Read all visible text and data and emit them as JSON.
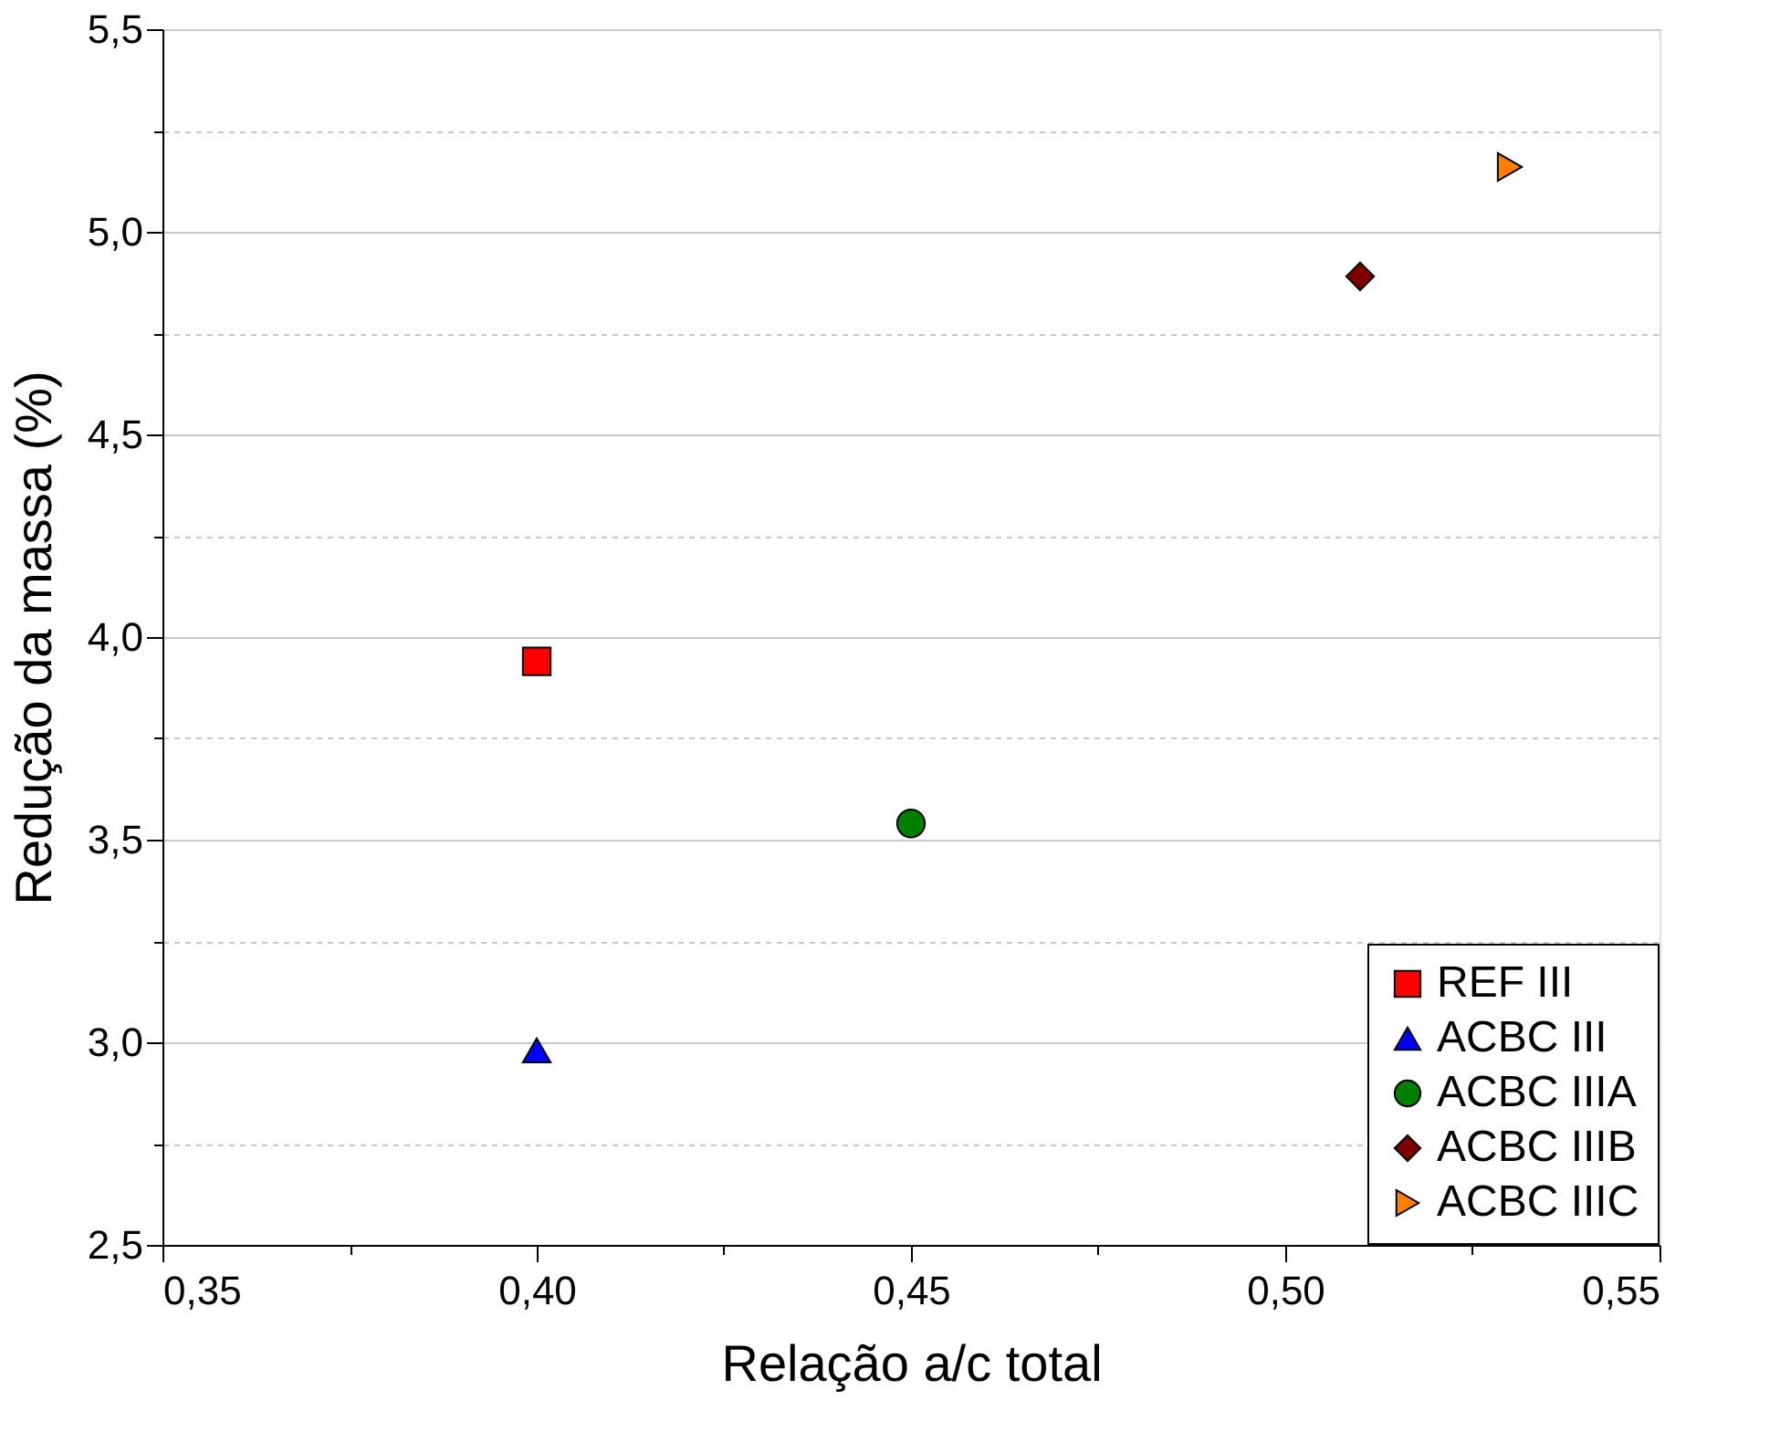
{
  "chart_data": {
    "type": "scatter",
    "xlabel": "Relação a/c total",
    "ylabel": "Redução da massa (%)",
    "xlim": [
      0.35,
      0.55
    ],
    "ylim": [
      2.5,
      5.5
    ],
    "xticks": [
      {
        "value": 0.35,
        "label": "0,35"
      },
      {
        "value": 0.375,
        "label": null
      },
      {
        "value": 0.4,
        "label": "0,40"
      },
      {
        "value": 0.425,
        "label": null
      },
      {
        "value": 0.45,
        "label": "0,45"
      },
      {
        "value": 0.475,
        "label": null
      },
      {
        "value": 0.5,
        "label": "0,50"
      },
      {
        "value": 0.525,
        "label": null
      },
      {
        "value": 0.55,
        "label": "0,55"
      }
    ],
    "yticks": [
      {
        "value": 2.5,
        "label": "2,5"
      },
      {
        "value": 2.75,
        "label": null
      },
      {
        "value": 3.0,
        "label": "3,0"
      },
      {
        "value": 3.25,
        "label": null
      },
      {
        "value": 3.5,
        "label": "3,5"
      },
      {
        "value": 3.75,
        "label": null
      },
      {
        "value": 4.0,
        "label": "4,0"
      },
      {
        "value": 4.25,
        "label": null
      },
      {
        "value": 4.5,
        "label": "4,5"
      },
      {
        "value": 4.75,
        "label": null
      },
      {
        "value": 5.0,
        "label": "5,0"
      },
      {
        "value": 5.25,
        "label": null
      },
      {
        "value": 5.5,
        "label": "5,5"
      }
    ],
    "grid": "y",
    "legend": "bottom right",
    "series": [
      {
        "name": "REF III",
        "color": "#ff0000",
        "marker": "square",
        "x": [
          0.4
        ],
        "values": [
          3.94
        ]
      },
      {
        "name": "ACBC III",
        "color": "#0000ff",
        "marker": "triangle",
        "x": [
          0.4
        ],
        "values": [
          2.98
        ]
      },
      {
        "name": "ACBC IIIA",
        "color": "#008000",
        "marker": "circle",
        "x": [
          0.45
        ],
        "values": [
          3.54
        ]
      },
      {
        "name": "ACBC IIIB",
        "color": "#800000",
        "marker": "diamond",
        "x": [
          0.51
        ],
        "values": [
          4.89
        ]
      },
      {
        "name": "ACBC IIIC",
        "color": "#ff8000",
        "marker": "triangle-right",
        "x": [
          0.53
        ],
        "values": [
          5.16
        ]
      }
    ]
  }
}
